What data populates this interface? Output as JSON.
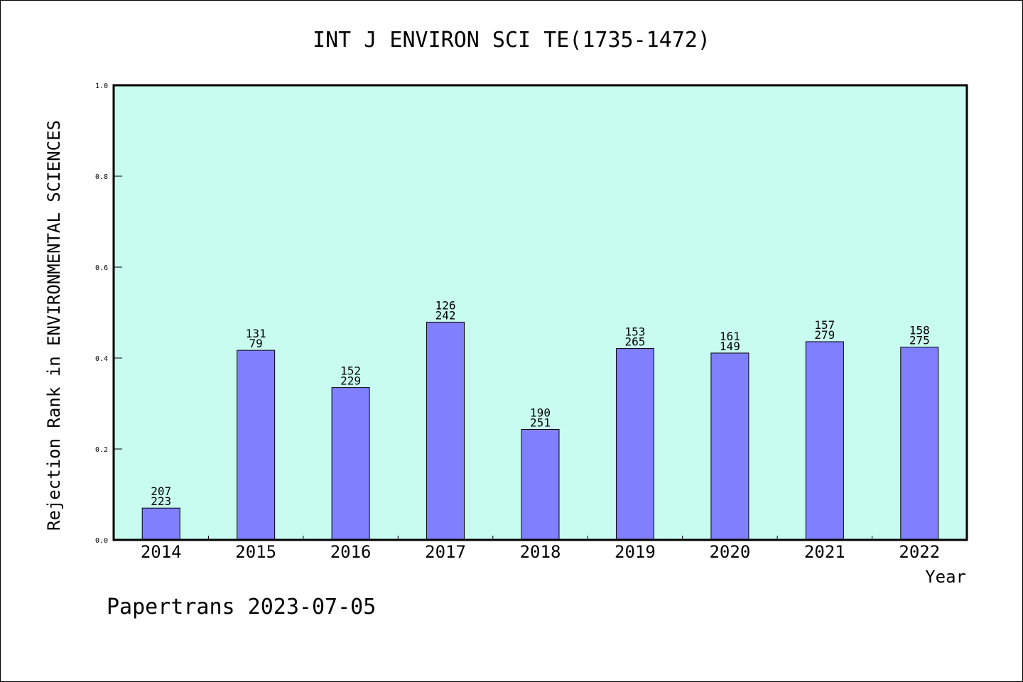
{
  "chart_data": {
    "type": "bar",
    "title": "INT J ENVIRON SCI TE(1735-1472)",
    "ylabel": "Rejection Rank in ENVIRONMENTAL SCIENCES",
    "xlabel": "Year",
    "ylim": [
      0,
      1.0
    ],
    "yticks": [
      "0.0",
      "0.2",
      "0.4",
      "0.6",
      "0.8",
      "1.0"
    ],
    "grid": false,
    "categories": [
      "2014",
      "2015",
      "2016",
      "2017",
      "2018",
      "2019",
      "2020",
      "2021",
      "2022"
    ],
    "values": [
      0.07,
      0.417,
      0.335,
      0.479,
      0.243,
      0.421,
      0.411,
      0.436,
      0.424
    ],
    "labels_top": [
      "207",
      "131",
      "152",
      "126",
      "190",
      "153",
      "161",
      "157",
      "158"
    ],
    "labels_bottom": [
      "223",
      "79",
      "229",
      "242",
      "251",
      "265",
      "149",
      "279",
      "275"
    ],
    "plot_background": "#c8fcf0",
    "bar_color": "#8080ff"
  },
  "footer": "Papertrans 2023-07-05"
}
